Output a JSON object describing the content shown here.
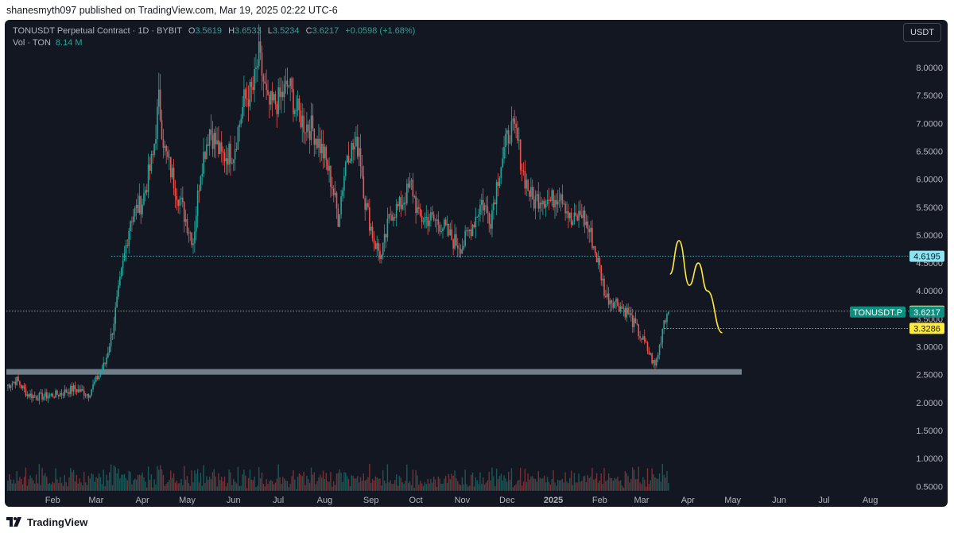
{
  "header": {
    "published_by": "shanesmyth097 published on TradingView.com, Mar 19, 2025 02:22 UTC-6"
  },
  "legend": {
    "symbol": "TONUSDT Perpetual Contract · 1D · BYBIT",
    "o_label": "O",
    "o_value": "3.5619",
    "h_label": "H",
    "h_value": "3.6533",
    "l_label": "L",
    "l_value": "3.5234",
    "c_label": "C",
    "c_value": "3.6217",
    "change": "+0.0598 (+1.68%)",
    "vol_label": "Vol · TON",
    "vol_value": "8.14 M"
  },
  "currency_button": "USDT",
  "footer": {
    "brand": "TradingView"
  },
  "colors": {
    "background": "#131722",
    "up": "#26a69a",
    "down": "#ef5350",
    "resistance_line": "#5fd3e6",
    "support_zone": "#90a4ae",
    "drawing": "#ffeb3b"
  },
  "chart_data": {
    "type": "candlestick",
    "symbol": "TONUSDT.P",
    "timeframe": "1D",
    "y_axis_ticks": [
      8.0,
      7.5,
      7.0,
      6.5,
      6.0,
      5.5,
      5.0,
      4.5,
      4.0,
      3.5,
      3.0,
      2.5,
      2.0,
      1.5,
      1.0,
      0.5
    ],
    "y_tick_labels": [
      "8.0000",
      "7.5000",
      "7.0000",
      "6.5000",
      "6.0000",
      "5.5000",
      "5.0000",
      "4.5000",
      "4.0000",
      "3.5000",
      "3.0000",
      "2.5000",
      "2.0000",
      "1.5000",
      "1.0000",
      "0.5000"
    ],
    "x_axis_labels": [
      "Feb",
      "Mar",
      "Apr",
      "May",
      "Jun",
      "Jul",
      "Aug",
      "Sep",
      "Oct",
      "Nov",
      "Dec",
      "2025",
      "Feb",
      "Mar",
      "Apr",
      "May",
      "Jun",
      "Jul",
      "Aug"
    ],
    "bold_x_label": "2025",
    "price_series": {
      "name": "TONUSDT",
      "points": [
        [
          "2024-01-01",
          2.3
        ],
        [
          "2024-01-08",
          2.4
        ],
        [
          "2024-01-15",
          2.15
        ],
        [
          "2024-01-22",
          2.1
        ],
        [
          "2024-02-05",
          2.15
        ],
        [
          "2024-02-15",
          2.25
        ],
        [
          "2024-02-25",
          2.15
        ],
        [
          "2024-03-01",
          2.4
        ],
        [
          "2024-03-07",
          2.7
        ],
        [
          "2024-03-12",
          3.3
        ],
        [
          "2024-03-18",
          4.3
        ],
        [
          "2024-03-24",
          5.3
        ],
        [
          "2024-04-01",
          5.6
        ],
        [
          "2024-04-08",
          6.4
        ],
        [
          "2024-04-12",
          7.4
        ],
        [
          "2024-04-16",
          6.5
        ],
        [
          "2024-04-24",
          5.8
        ],
        [
          "2024-05-01",
          5.2
        ],
        [
          "2024-05-05",
          4.9
        ],
        [
          "2024-05-10",
          6.2
        ],
        [
          "2024-05-16",
          6.9
        ],
        [
          "2024-05-24",
          6.4
        ],
        [
          "2024-06-01",
          6.5
        ],
        [
          "2024-06-08",
          7.4
        ],
        [
          "2024-06-14",
          7.6
        ],
        [
          "2024-06-18",
          8.2
        ],
        [
          "2024-06-24",
          7.3
        ],
        [
          "2024-07-01",
          7.4
        ],
        [
          "2024-07-08",
          7.7
        ],
        [
          "2024-07-12",
          7.3
        ],
        [
          "2024-07-18",
          7.0
        ],
        [
          "2024-07-24",
          6.9
        ],
        [
          "2024-08-01",
          6.4
        ],
        [
          "2024-08-06",
          5.9
        ],
        [
          "2024-08-10",
          5.3
        ],
        [
          "2024-08-16",
          6.5
        ],
        [
          "2024-08-24",
          6.6
        ],
        [
          "2024-08-28",
          5.6
        ],
        [
          "2024-09-03",
          4.9
        ],
        [
          "2024-09-08",
          4.6
        ],
        [
          "2024-09-14",
          5.4
        ],
        [
          "2024-09-20",
          5.5
        ],
        [
          "2024-09-28",
          5.9
        ],
        [
          "2024-10-03",
          5.3
        ],
        [
          "2024-10-10",
          5.3
        ],
        [
          "2024-10-18",
          5.2
        ],
        [
          "2024-10-26",
          4.9
        ],
        [
          "2024-11-01",
          4.8
        ],
        [
          "2024-11-08",
          5.2
        ],
        [
          "2024-11-14",
          5.6
        ],
        [
          "2024-11-20",
          5.3
        ],
        [
          "2024-11-26",
          6.2
        ],
        [
          "2024-12-03",
          6.9
        ],
        [
          "2024-12-07",
          6.8
        ],
        [
          "2024-12-12",
          6.1
        ],
        [
          "2024-12-18",
          5.6
        ],
        [
          "2024-12-24",
          5.7
        ],
        [
          "2024-12-30",
          5.6
        ],
        [
          "2025-01-06",
          5.8
        ],
        [
          "2025-01-13",
          5.2
        ],
        [
          "2025-01-20",
          5.4
        ],
        [
          "2025-01-26",
          5.0
        ],
        [
          "2025-02-01",
          4.4
        ],
        [
          "2025-02-05",
          3.9
        ],
        [
          "2025-02-12",
          3.8
        ],
        [
          "2025-02-20",
          3.6
        ],
        [
          "2025-02-26",
          3.3
        ],
        [
          "2025-03-04",
          3.0
        ],
        [
          "2025-03-10",
          2.65
        ],
        [
          "2025-03-13",
          3.0
        ],
        [
          "2025-03-16",
          3.5
        ],
        [
          "2025-03-19",
          3.62
        ]
      ]
    },
    "volume_series": {
      "name": "Vol · TON"
    },
    "horizontal_lines": [
      {
        "price": 4.6195,
        "label": "4.6195",
        "style": "dotted",
        "color": "#5fd3e6"
      },
      {
        "price": 3.6361,
        "label": "3.6361",
        "style": "dotted",
        "color": "#c8cc80"
      },
      {
        "price": 3.3286,
        "label": "3.3286",
        "style": "dotted",
        "color": "#c8cc80"
      }
    ],
    "support_zone": {
      "price_low": 2.5,
      "price_high": 2.6
    },
    "current_price": {
      "symbol_label": "TONUSDT.P",
      "value": "3.6217"
    },
    "projection_path": [
      [
        "2025-03-20",
        4.3
      ],
      [
        "2025-03-26",
        4.9
      ],
      [
        "2025-04-02",
        4.1
      ],
      [
        "2025-04-08",
        4.5
      ],
      [
        "2025-04-14",
        4.0
      ],
      [
        "2025-04-24",
        3.25
      ]
    ],
    "xlabel": "",
    "ylabel": "",
    "ylim": [
      0.4,
      8.4
    ],
    "grid": false,
    "legend_position": "top-left"
  }
}
